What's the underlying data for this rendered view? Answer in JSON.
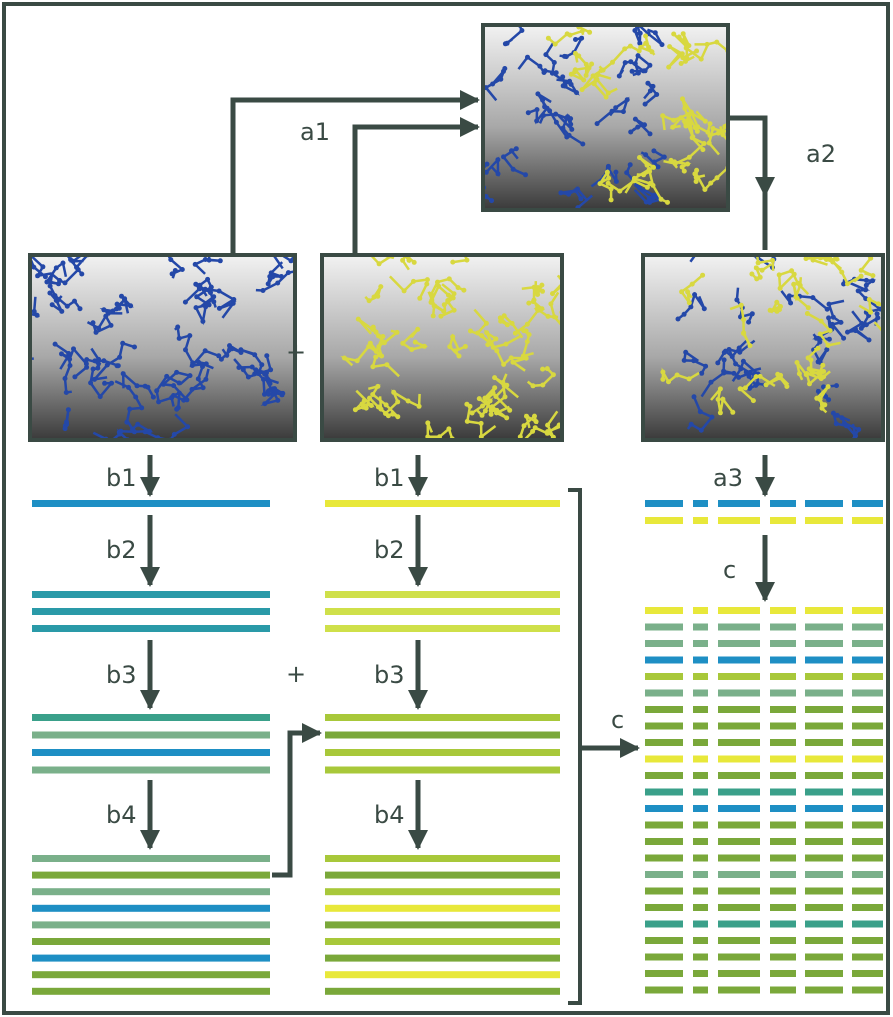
{
  "labels": {
    "a1": "a1",
    "a2": "a2",
    "a3": "a3",
    "c_top": "c",
    "c_right": "c"
  },
  "plus_signs": [
    "+",
    "+"
  ],
  "left_steps": [
    "b1",
    "b2",
    "b3",
    "b4"
  ],
  "middle_steps": [
    "b1",
    "b2",
    "b3",
    "b4"
  ]
}
